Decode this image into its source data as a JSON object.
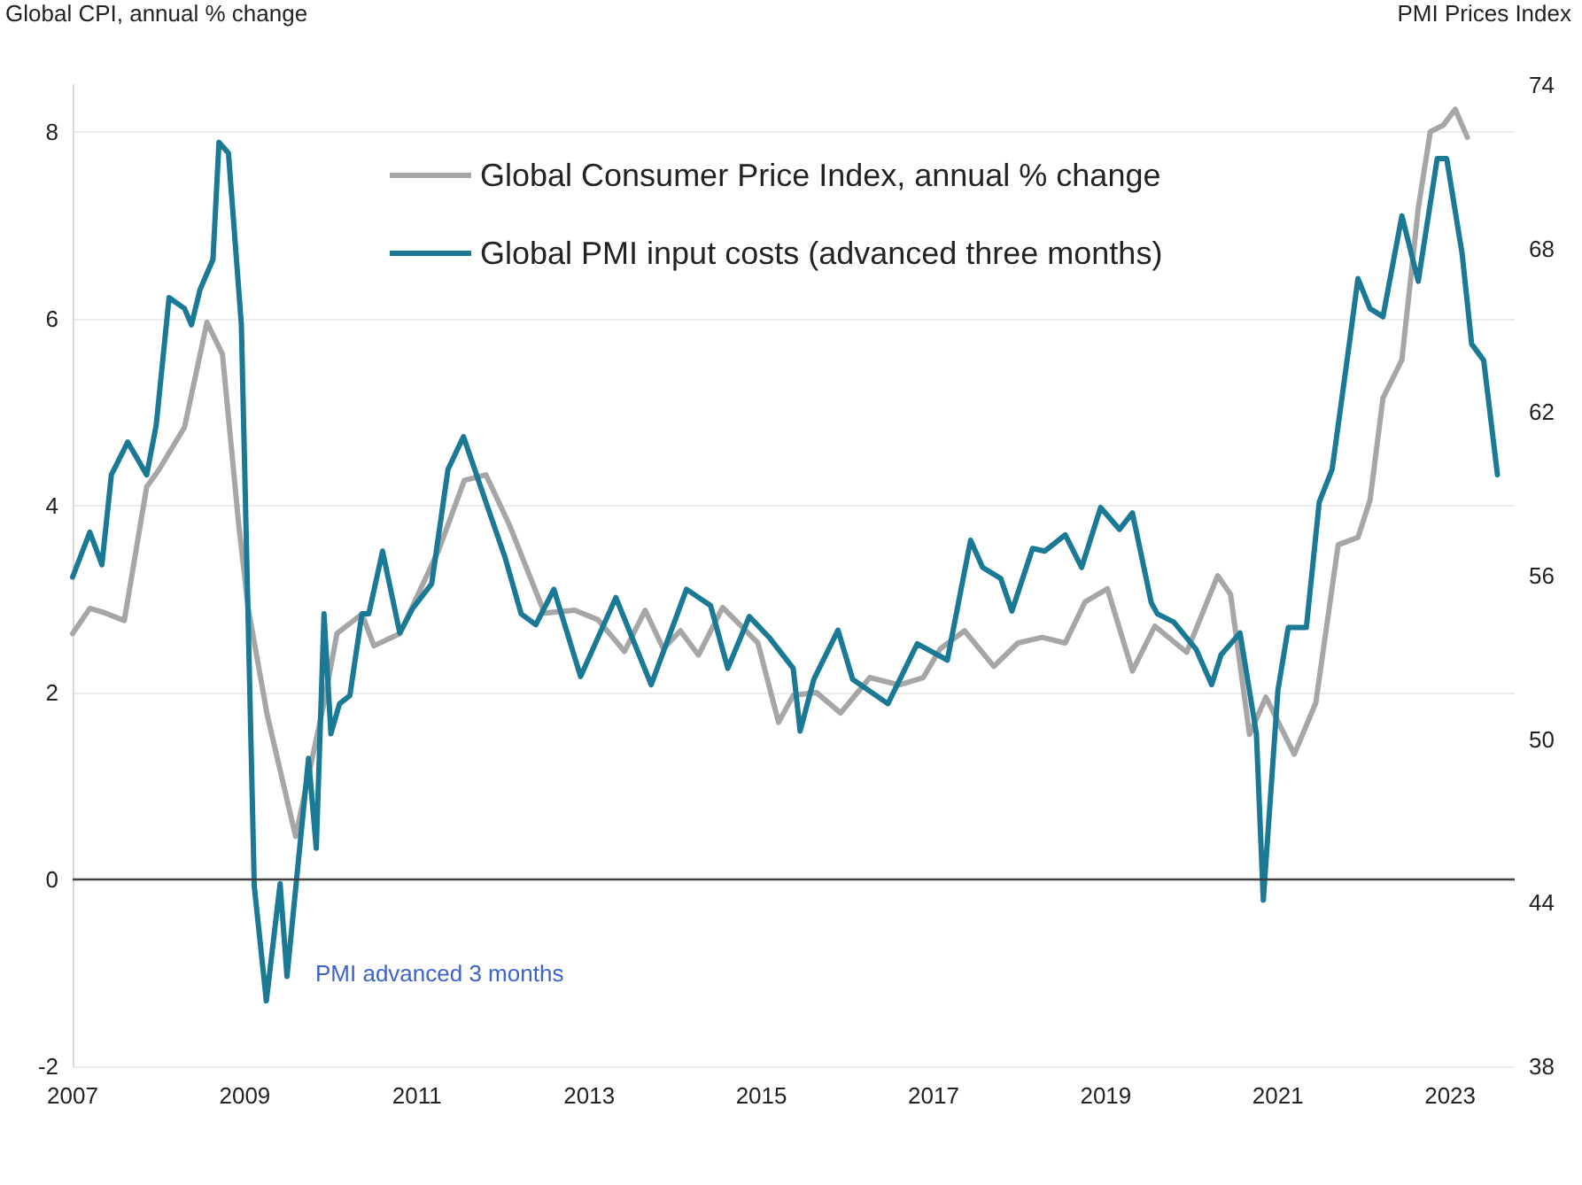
{
  "chart_data": {
    "type": "line",
    "ylabel": "Global CPI, annual % change",
    "y2label": "PMI Prices Index",
    "xlim": [
      2007,
      2023.75
    ],
    "xticks": [
      2007,
      2009,
      2011,
      2013,
      2015,
      2017,
      2019,
      2021,
      2023
    ],
    "ylim": [
      -2,
      8.5
    ],
    "yticks": [
      -2,
      0,
      2,
      4,
      6,
      8
    ],
    "y2lim": [
      38,
      74
    ],
    "y2ticks": [
      38,
      44,
      50,
      56,
      62,
      68,
      74
    ],
    "grid": "y",
    "legend": "top",
    "marker": "none",
    "line_style": "solid",
    "ref_lines": [
      {
        "axis": "y",
        "value": 0,
        "color": "#404040"
      }
    ],
    "annotations": [
      "PMI advanced 3 months"
    ],
    "series": [
      {
        "name": "Global Consumer Price Index, annual % change",
        "color": "#a6a6a6",
        "x": [
          2007.0,
          2007.2,
          2007.38,
          2007.6,
          2007.86,
          2008.0,
          2008.3,
          2008.56,
          2008.74,
          2008.93,
          2009.04,
          2009.26,
          2009.59,
          2009.92,
          2010.07,
          2010.36,
          2010.5,
          2010.8,
          2011.25,
          2011.55,
          2011.8,
          2012.07,
          2012.48,
          2012.83,
          2013.1,
          2013.41,
          2013.65,
          2013.86,
          2014.06,
          2014.27,
          2014.55,
          2014.96,
          2015.2,
          2015.37,
          2015.64,
          2015.92,
          2016.26,
          2016.6,
          2016.88,
          2017.08,
          2017.36,
          2017.7,
          2017.98,
          2018.26,
          2018.53,
          2018.76,
          2019.02,
          2019.31,
          2019.57,
          2019.94,
          2020.3,
          2020.45,
          2020.67,
          2020.86,
          2021.19,
          2021.44,
          2021.7,
          2021.93,
          2022.07,
          2022.22,
          2022.44,
          2022.63,
          2022.77,
          2022.92,
          2023.06,
          2023.2
        ],
        "values": [
          2.63,
          2.9,
          2.85,
          2.77,
          4.2,
          4.38,
          4.84,
          5.96,
          5.62,
          3.79,
          2.9,
          1.76,
          0.46,
          1.89,
          2.63,
          2.84,
          2.5,
          2.63,
          3.52,
          4.27,
          4.33,
          3.8,
          2.85,
          2.88,
          2.78,
          2.44,
          2.88,
          2.47,
          2.66,
          2.4,
          2.91,
          2.53,
          1.68,
          1.97,
          2.0,
          1.78,
          2.16,
          2.08,
          2.16,
          2.47,
          2.66,
          2.28,
          2.53,
          2.59,
          2.53,
          2.97,
          3.11,
          2.23,
          2.71,
          2.43,
          3.25,
          3.05,
          1.55,
          1.95,
          1.34,
          1.89,
          3.58,
          3.66,
          4.06,
          5.15,
          5.56,
          7.18,
          8.0,
          8.07,
          8.24,
          7.94
        ]
      },
      {
        "name": "Global PMI input costs (advanced three months)",
        "color": "#1a7a96",
        "axis": "y2",
        "x": [
          2007.0,
          2007.2,
          2007.34,
          2007.45,
          2007.64,
          2007.86,
          2007.97,
          2008.12,
          2008.3,
          2008.38,
          2008.48,
          2008.63,
          2008.7,
          2008.81,
          2008.96,
          2009.11,
          2009.25,
          2009.41,
          2009.49,
          2009.74,
          2009.83,
          2009.92,
          2010.0,
          2010.1,
          2010.22,
          2010.36,
          2010.44,
          2010.6,
          2010.8,
          2010.95,
          2011.17,
          2011.36,
          2011.54,
          2011.8,
          2012.02,
          2012.21,
          2012.38,
          2012.59,
          2012.9,
          2013.31,
          2013.72,
          2014.13,
          2014.41,
          2014.61,
          2014.86,
          2015.1,
          2015.37,
          2015.45,
          2015.61,
          2015.89,
          2016.06,
          2016.47,
          2016.81,
          2017.16,
          2017.43,
          2017.57,
          2017.78,
          2017.91,
          2018.15,
          2018.29,
          2018.53,
          2018.72,
          2018.94,
          2019.16,
          2019.31,
          2019.53,
          2019.6,
          2019.79,
          2020.05,
          2020.23,
          2020.34,
          2020.56,
          2020.75,
          2020.83,
          2021.0,
          2021.12,
          2021.33,
          2021.48,
          2021.63,
          2021.82,
          2021.93,
          2022.07,
          2022.22,
          2022.44,
          2022.63,
          2022.85,
          2022.96,
          2023.14,
          2023.25,
          2023.39,
          2023.55
        ],
        "values": [
          55.95,
          57.6,
          56.4,
          59.7,
          60.9,
          59.7,
          61.5,
          66.2,
          65.8,
          65.2,
          66.5,
          67.6,
          71.9,
          71.5,
          65.2,
          44.6,
          40.4,
          44.7,
          41.3,
          49.3,
          46.0,
          54.6,
          50.2,
          51.3,
          51.6,
          54.6,
          54.6,
          56.9,
          53.9,
          54.8,
          55.7,
          59.9,
          61.1,
          58.7,
          56.7,
          54.6,
          54.2,
          55.5,
          52.3,
          55.2,
          52.0,
          55.5,
          54.9,
          52.6,
          54.5,
          53.7,
          52.6,
          50.3,
          52.2,
          54.0,
          52.2,
          51.3,
          53.5,
          52.9,
          57.3,
          56.3,
          55.9,
          54.7,
          57.0,
          56.9,
          57.5,
          56.3,
          58.5,
          57.7,
          58.3,
          55.0,
          54.6,
          54.3,
          53.3,
          52.0,
          53.1,
          53.9,
          50.2,
          44.1,
          51.8,
          54.1,
          54.1,
          58.7,
          59.9,
          64.3,
          66.9,
          65.8,
          65.5,
          69.2,
          66.8,
          71.3,
          71.3,
          67.8,
          64.5,
          63.9,
          59.7
        ]
      }
    ]
  }
}
